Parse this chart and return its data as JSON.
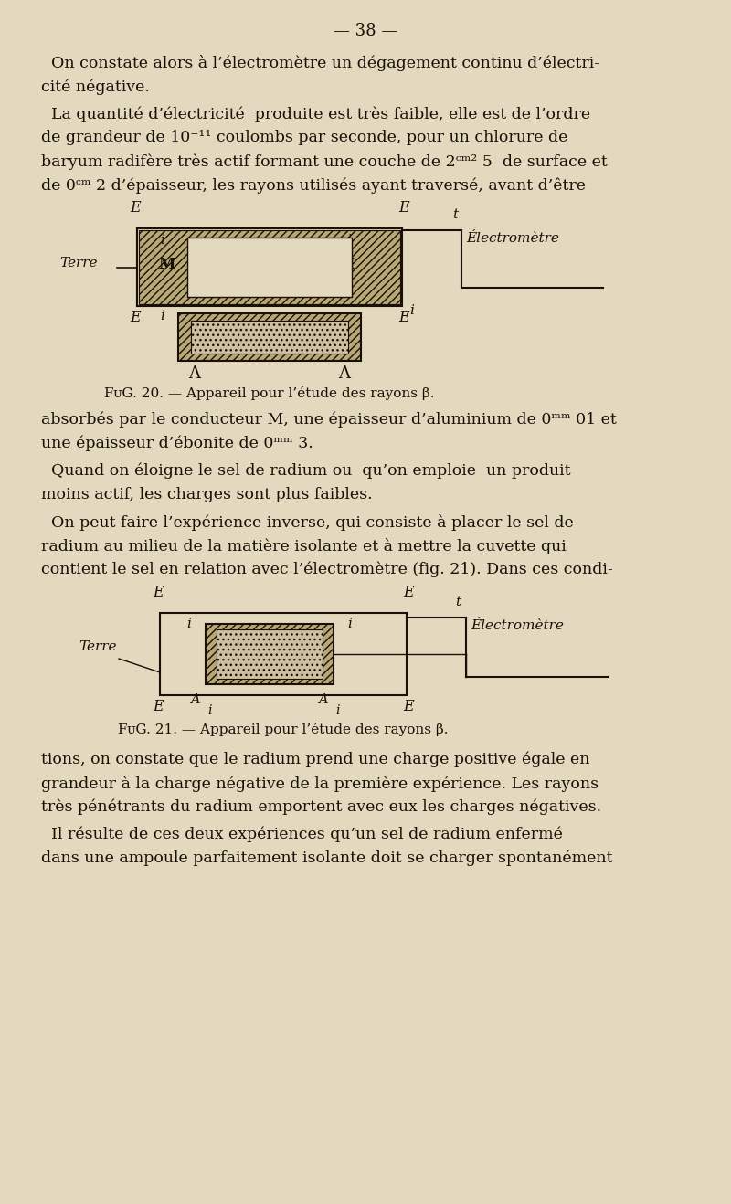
{
  "bg_color": "#e3d9be",
  "text_color": "#1a1008",
  "page_number": "— 38 —",
  "p1_lines": [
    "  On constate alors à l’électromètre un dégagement continu d’électri-",
    "cité négative."
  ],
  "p2_lines": [
    "  La quantité d’électricité  produite est très faible, elle est de l’ordre",
    "de grandeur de 10⁻¹¹ coulombs par seconde, pour un chlorure de",
    "baryum radifère très actif formant une couche de 2ᶜᵐ² 5  de surface et",
    "de 0ᶜᵐ 2 d’épaisseur, les rayons utilisés ayant traversé, avant d’être"
  ],
  "fig20_caption": "FᴜG. 20. — Appareil pour l’étude des rayons β.",
  "p3_lines": [
    "absorbés par le conducteur M, une épaisseur d’aluminium de 0ᵐᵐ 01 et",
    "une épaisseur d’ébonite de 0ᵐᵐ 3."
  ],
  "p4_lines": [
    "  Quand on éloigne le sel de radium ou  qu’on emploie  un produit",
    "moins actif, les charges sont plus faibles."
  ],
  "p5_lines": [
    "  On peut faire l’expérience inverse, qui consiste à placer le sel de",
    "radium au milieu de la matière isolante et à mettre la cuvette qui",
    "contient le sel en relation avec l’électromètre (fig. 21). Dans ces condi-"
  ],
  "fig21_caption": "FᴜG. 21. — Appareil pour l’étude des rayons β.",
  "p6_lines": [
    "tions, on constate que le radium prend une charge positive égale en",
    "grandeur à la charge négative de la première expérience. Les rayons",
    "très pénétrants du radium emportent avec eux les charges négatives."
  ],
  "p7_lines": [
    "  Il résulte de ces deux expériences qu’un sel de radium enfermé",
    "dans une ampoule parfaitement isolante doit se charger spontanément"
  ],
  "hatch_color": "#b8a875",
  "inner_color": "#d4c8a0",
  "dot_color": "#ccc0a0"
}
